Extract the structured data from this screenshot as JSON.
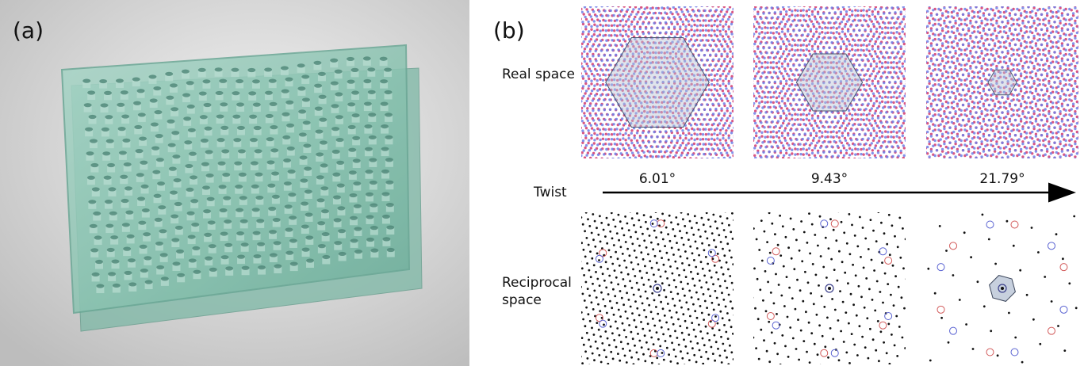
{
  "panel_a": {
    "label": "(a)"
  },
  "panel_b": {
    "label": "(b)",
    "rows": [
      "Real space",
      "Reciprocal space"
    ],
    "axis_label": "Twist",
    "angles": [
      "6.01°",
      "9.43°",
      "21.79°"
    ]
  }
}
